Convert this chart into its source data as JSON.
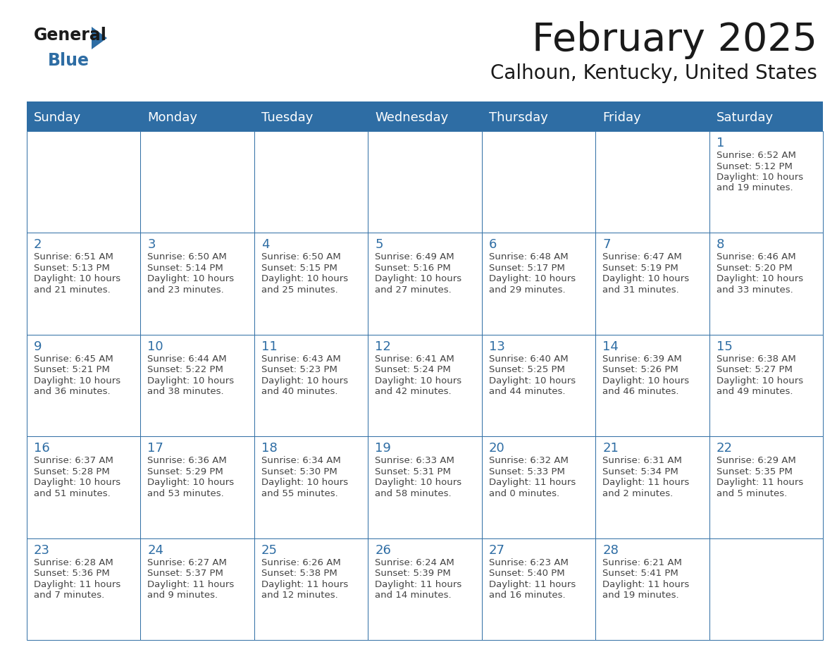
{
  "title": "February 2025",
  "subtitle": "Calhoun, Kentucky, United States",
  "header_bg": "#2E6DA4",
  "header_text_color": "#FFFFFF",
  "cell_bg": "#FFFFFF",
  "day_number_color": "#2E6DA4",
  "text_color": "#444444",
  "border_color": "#2E6DA4",
  "logo_general_color": "#1a1a1a",
  "logo_blue_color": "#2E6DA4",
  "logo_triangle_color": "#2E6DA4",
  "days_of_week": [
    "Sunday",
    "Monday",
    "Tuesday",
    "Wednesday",
    "Thursday",
    "Friday",
    "Saturday"
  ],
  "calendar_data": [
    [
      null,
      null,
      null,
      null,
      null,
      null,
      {
        "day": "1",
        "sunrise": "6:52 AM",
        "sunset": "5:12 PM",
        "daylight": "10 hours",
        "daylight2": "and 19 minutes."
      }
    ],
    [
      {
        "day": "2",
        "sunrise": "6:51 AM",
        "sunset": "5:13 PM",
        "daylight": "10 hours",
        "daylight2": "and 21 minutes."
      },
      {
        "day": "3",
        "sunrise": "6:50 AM",
        "sunset": "5:14 PM",
        "daylight": "10 hours",
        "daylight2": "and 23 minutes."
      },
      {
        "day": "4",
        "sunrise": "6:50 AM",
        "sunset": "5:15 PM",
        "daylight": "10 hours",
        "daylight2": "and 25 minutes."
      },
      {
        "day": "5",
        "sunrise": "6:49 AM",
        "sunset": "5:16 PM",
        "daylight": "10 hours",
        "daylight2": "and 27 minutes."
      },
      {
        "day": "6",
        "sunrise": "6:48 AM",
        "sunset": "5:17 PM",
        "daylight": "10 hours",
        "daylight2": "and 29 minutes."
      },
      {
        "day": "7",
        "sunrise": "6:47 AM",
        "sunset": "5:19 PM",
        "daylight": "10 hours",
        "daylight2": "and 31 minutes."
      },
      {
        "day": "8",
        "sunrise": "6:46 AM",
        "sunset": "5:20 PM",
        "daylight": "10 hours",
        "daylight2": "and 33 minutes."
      }
    ],
    [
      {
        "day": "9",
        "sunrise": "6:45 AM",
        "sunset": "5:21 PM",
        "daylight": "10 hours",
        "daylight2": "and 36 minutes."
      },
      {
        "day": "10",
        "sunrise": "6:44 AM",
        "sunset": "5:22 PM",
        "daylight": "10 hours",
        "daylight2": "and 38 minutes."
      },
      {
        "day": "11",
        "sunrise": "6:43 AM",
        "sunset": "5:23 PM",
        "daylight": "10 hours",
        "daylight2": "and 40 minutes."
      },
      {
        "day": "12",
        "sunrise": "6:41 AM",
        "sunset": "5:24 PM",
        "daylight": "10 hours",
        "daylight2": "and 42 minutes."
      },
      {
        "day": "13",
        "sunrise": "6:40 AM",
        "sunset": "5:25 PM",
        "daylight": "10 hours",
        "daylight2": "and 44 minutes."
      },
      {
        "day": "14",
        "sunrise": "6:39 AM",
        "sunset": "5:26 PM",
        "daylight": "10 hours",
        "daylight2": "and 46 minutes."
      },
      {
        "day": "15",
        "sunrise": "6:38 AM",
        "sunset": "5:27 PM",
        "daylight": "10 hours",
        "daylight2": "and 49 minutes."
      }
    ],
    [
      {
        "day": "16",
        "sunrise": "6:37 AM",
        "sunset": "5:28 PM",
        "daylight": "10 hours",
        "daylight2": "and 51 minutes."
      },
      {
        "day": "17",
        "sunrise": "6:36 AM",
        "sunset": "5:29 PM",
        "daylight": "10 hours",
        "daylight2": "and 53 minutes."
      },
      {
        "day": "18",
        "sunrise": "6:34 AM",
        "sunset": "5:30 PM",
        "daylight": "10 hours",
        "daylight2": "and 55 minutes."
      },
      {
        "day": "19",
        "sunrise": "6:33 AM",
        "sunset": "5:31 PM",
        "daylight": "10 hours",
        "daylight2": "and 58 minutes."
      },
      {
        "day": "20",
        "sunrise": "6:32 AM",
        "sunset": "5:33 PM",
        "daylight": "11 hours",
        "daylight2": "and 0 minutes."
      },
      {
        "day": "21",
        "sunrise": "6:31 AM",
        "sunset": "5:34 PM",
        "daylight": "11 hours",
        "daylight2": "and 2 minutes."
      },
      {
        "day": "22",
        "sunrise": "6:29 AM",
        "sunset": "5:35 PM",
        "daylight": "11 hours",
        "daylight2": "and 5 minutes."
      }
    ],
    [
      {
        "day": "23",
        "sunrise": "6:28 AM",
        "sunset": "5:36 PM",
        "daylight": "11 hours",
        "daylight2": "and 7 minutes."
      },
      {
        "day": "24",
        "sunrise": "6:27 AM",
        "sunset": "5:37 PM",
        "daylight": "11 hours",
        "daylight2": "and 9 minutes."
      },
      {
        "day": "25",
        "sunrise": "6:26 AM",
        "sunset": "5:38 PM",
        "daylight": "11 hours",
        "daylight2": "and 12 minutes."
      },
      {
        "day": "26",
        "sunrise": "6:24 AM",
        "sunset": "5:39 PM",
        "daylight": "11 hours",
        "daylight2": "and 14 minutes."
      },
      {
        "day": "27",
        "sunrise": "6:23 AM",
        "sunset": "5:40 PM",
        "daylight": "11 hours",
        "daylight2": "and 16 minutes."
      },
      {
        "day": "28",
        "sunrise": "6:21 AM",
        "sunset": "5:41 PM",
        "daylight": "11 hours",
        "daylight2": "and 19 minutes."
      },
      null
    ]
  ]
}
